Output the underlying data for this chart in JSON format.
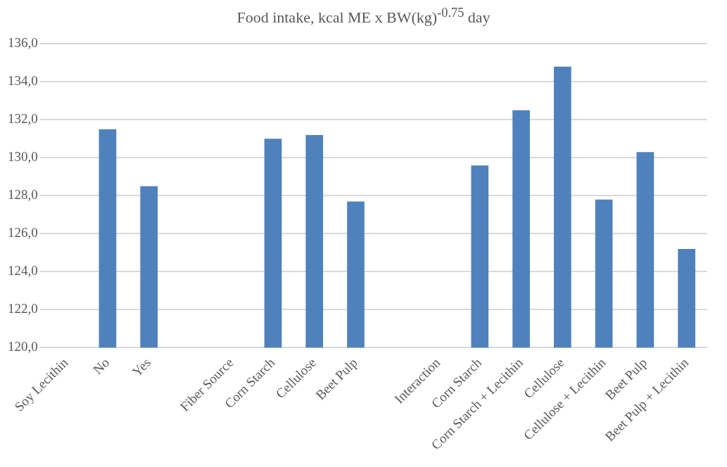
{
  "chart_data": {
    "type": "bar",
    "title": "Food intake, kcal ME x BW(kg)$^{-0.75}$ day",
    "categories": [
      "Soy Lecithin",
      "No",
      "Yes",
      null,
      "Fiber Source",
      "Corn Starch",
      "Cellulose",
      "Beet Pulp",
      null,
      "Interaction",
      "Corn Starch",
      "Corn Starch + Lecithin",
      "Cellulose",
      "Cellulose + Lecithin",
      "Beet Pulp",
      "Beet Pulp + Lecithin"
    ],
    "values": [
      null,
      131.5,
      128.5,
      null,
      null,
      131.0,
      131.2,
      127.7,
      null,
      null,
      129.6,
      132.5,
      134.8,
      127.8,
      130.3,
      125.2
    ],
    "color": "#4f81bd",
    "ylim": [
      120,
      136
    ],
    "yticks": [
      {
        "value": 120,
        "label": "120,0"
      },
      {
        "value": 122,
        "label": "122,0"
      },
      {
        "value": 124,
        "label": "124,0"
      },
      {
        "value": 126,
        "label": "126,0"
      },
      {
        "value": 128,
        "label": "128,0"
      },
      {
        "value": 130,
        "label": "130,0"
      },
      {
        "value": 132,
        "label": "132,0"
      },
      {
        "value": 134,
        "label": "134,0"
      },
      {
        "value": 136,
        "label": "136,0"
      }
    ],
    "grid": "y",
    "legend": false
  }
}
